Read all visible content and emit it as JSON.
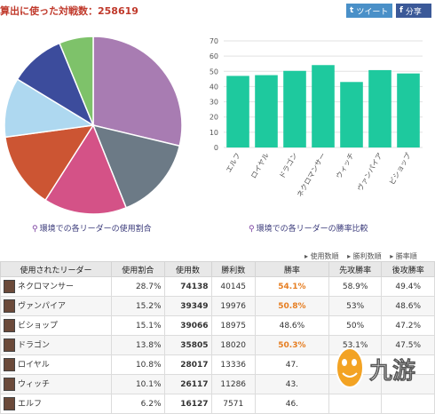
{
  "header": {
    "title": "算出に使った対戦数：",
    "count": "258619"
  },
  "share": {
    "tweet_label": "ツイート",
    "facebook_label": "分享"
  },
  "pie_chart": {
    "caption": "環境での各リーダーの使用割合",
    "slices": [
      {
        "value": 28.7,
        "color": "#a87cb2"
      },
      {
        "value": 15.2,
        "color": "#6c7a86"
      },
      {
        "value": 15.1,
        "color": "#d45287"
      },
      {
        "value": 13.8,
        "color": "#cc5533"
      },
      {
        "value": 10.8,
        "color": "#aed8f0"
      },
      {
        "value": 10.1,
        "color": "#3c4c9c"
      },
      {
        "value": 6.2,
        "color": "#7ec26a"
      }
    ]
  },
  "chart_data": {
    "type": "bar",
    "categories": [
      "エルフ",
      "ロイヤル",
      "ドラゴン",
      "ネクロマンサー",
      "ウィッチ",
      "ヴァンパイア",
      "ビショップ"
    ],
    "values": [
      47,
      47.5,
      50.3,
      54.1,
      43,
      50.8,
      48.6
    ],
    "ylim": [
      0,
      70
    ],
    "yticks": [
      0,
      10,
      20,
      30,
      40,
      50,
      60,
      70
    ],
    "color": "#1ec99e",
    "caption": "環境での各リーダーの勝率比較",
    "grid": true
  },
  "sort_links": [
    "使用数順",
    "勝利数順",
    "勝率順"
  ],
  "table": {
    "headers": [
      "使用されたリーダー",
      "使用割合",
      "使用数",
      "勝利数",
      "勝率",
      "先攻勝率",
      "後攻勝率"
    ],
    "rows": [
      {
        "name": "ネクロマンサー",
        "share": "28.7%",
        "uses": "74138",
        "wins": "40145",
        "rate": "54.1%",
        "first": "58.9%",
        "second": "49.4%",
        "hi": true
      },
      {
        "name": "ヴァンパイア",
        "share": "15.2%",
        "uses": "39349",
        "wins": "19976",
        "rate": "50.8%",
        "first": "53%",
        "second": "48.6%",
        "hi": true
      },
      {
        "name": "ビショップ",
        "share": "15.1%",
        "uses": "39066",
        "wins": "18975",
        "rate": "48.6%",
        "first": "50%",
        "second": "47.2%",
        "hi": false
      },
      {
        "name": "ドラゴン",
        "share": "13.8%",
        "uses": "35805",
        "wins": "18020",
        "rate": "50.3%",
        "first": "53.1%",
        "second": "47.5%",
        "hi": true
      },
      {
        "name": "ロイヤル",
        "share": "10.8%",
        "uses": "28017",
        "wins": "13336",
        "rate": "47.",
        "first": "",
        "second": "",
        "hi": false
      },
      {
        "name": "ウィッチ",
        "share": "10.1%",
        "uses": "26117",
        "wins": "11286",
        "rate": "43.",
        "first": "",
        "second": "",
        "hi": false
      },
      {
        "name": "エルフ",
        "share": "6.2%",
        "uses": "16127",
        "wins": "7571",
        "rate": "46.",
        "first": "",
        "second": "",
        "hi": false
      }
    ]
  },
  "watermark": {
    "text": "九游"
  }
}
